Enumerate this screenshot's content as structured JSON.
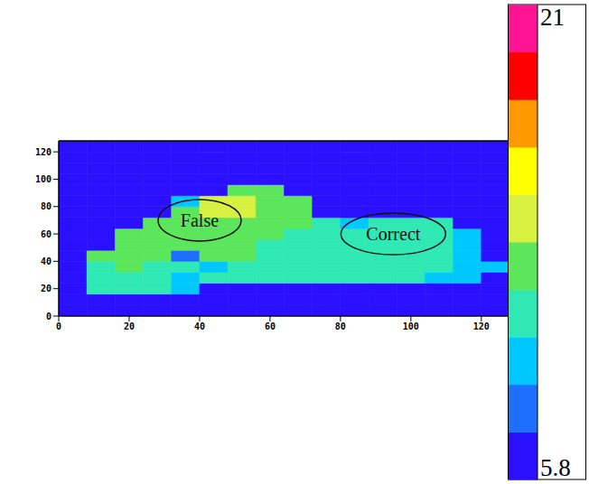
{
  "chart_data": {
    "type": "heatmap",
    "xlim": [
      0,
      128
    ],
    "ylim": [
      0,
      128
    ],
    "xticks": [
      0,
      20,
      40,
      60,
      80,
      100,
      120
    ],
    "yticks": [
      0,
      20,
      40,
      60,
      80,
      100,
      120
    ],
    "heatmap": {
      "xbins": [
        0,
        8,
        16,
        24,
        32,
        40,
        48,
        56,
        64,
        72,
        80,
        88,
        96,
        104,
        112,
        120,
        128
      ],
      "ybins": [
        0,
        8,
        16,
        24,
        32,
        40,
        48,
        56,
        64,
        72,
        80,
        88,
        96,
        104,
        112,
        120,
        128
      ],
      "cells": [
        [
          6,
          6,
          6,
          6,
          6,
          6,
          6,
          6,
          6,
          6,
          6,
          6,
          6,
          6,
          6,
          6
        ],
        [
          6,
          6,
          6,
          6,
          6,
          6,
          6,
          6,
          6,
          6,
          6,
          6,
          6,
          6,
          6,
          6
        ],
        [
          6,
          10.5,
          10.8,
          10.5,
          10.2,
          6,
          6,
          6,
          6,
          6,
          6,
          6,
          6,
          6,
          6,
          6
        ],
        [
          6,
          11,
          11.2,
          10.8,
          9,
          11,
          11.2,
          11,
          10.8,
          10.6,
          10.5,
          10.4,
          10.5,
          10.3,
          10.2,
          6
        ],
        [
          6,
          11.8,
          12,
          11.5,
          11.4,
          9,
          11.6,
          11.5,
          11.2,
          11,
          10.8,
          10.6,
          10.5,
          10.4,
          10.3,
          9.5
        ],
        [
          6,
          12.2,
          12.4,
          12,
          8.5,
          12.2,
          12,
          11.8,
          11.4,
          11.2,
          11,
          10.8,
          10.6,
          10.5,
          10.2,
          6
        ],
        [
          6,
          6,
          12.5,
          12.6,
          12.6,
          12.4,
          12.2,
          11.8,
          11.5,
          11.2,
          11,
          10.8,
          10.6,
          10.4,
          10.2,
          6
        ],
        [
          6,
          6,
          12.4,
          12.8,
          12.8,
          12.6,
          12.4,
          12,
          11.6,
          11.3,
          11,
          10.9,
          10.6,
          10.4,
          9,
          6
        ],
        [
          6,
          6,
          6,
          12.6,
          13,
          13.2,
          12.8,
          12.6,
          12.2,
          11.4,
          9.5,
          11,
          10.8,
          10.5,
          6,
          6
        ],
        [
          6,
          6,
          6,
          6,
          13.2,
          13.5,
          13.6,
          13,
          12.4,
          6,
          6,
          6,
          6,
          6,
          6,
          6
        ],
        [
          6,
          6,
          6,
          6,
          9,
          13.5,
          13.6,
          13.2,
          12.5,
          6,
          6,
          6,
          6,
          6,
          6,
          6
        ],
        [
          6,
          6,
          6,
          6,
          6,
          6,
          12.8,
          13,
          6,
          6,
          6,
          6,
          6,
          6,
          6,
          6
        ],
        [
          6,
          6,
          6,
          6,
          6,
          6,
          6,
          6,
          6,
          6,
          6,
          6,
          6,
          6,
          6,
          6
        ],
        [
          6,
          6,
          6,
          6,
          6,
          6,
          6,
          6,
          6,
          6,
          6,
          6,
          6,
          6,
          6,
          6
        ],
        [
          6,
          6,
          6,
          6,
          6,
          6,
          6,
          6,
          6,
          6,
          6,
          6,
          6,
          6,
          6,
          6
        ],
        [
          6,
          6,
          6,
          6,
          6,
          6,
          6,
          6,
          6,
          6,
          6,
          6,
          6,
          6,
          6,
          6
        ]
      ]
    },
    "colorbar": {
      "range": [
        5.8,
        21
      ],
      "ticks": [
        5.8,
        21
      ],
      "colors": [
        "#2a10ff",
        "#1f6fff",
        "#00c8ff",
        "#2fe8b4",
        "#5ce65c",
        "#d8f040",
        "#ffff00",
        "#ff9900",
        "#ff0000",
        "#ff1493"
      ]
    },
    "annotations": [
      {
        "text": "False",
        "x": 40,
        "y": 70
      },
      {
        "text": "Correct",
        "x": 95,
        "y": 60
      }
    ]
  }
}
